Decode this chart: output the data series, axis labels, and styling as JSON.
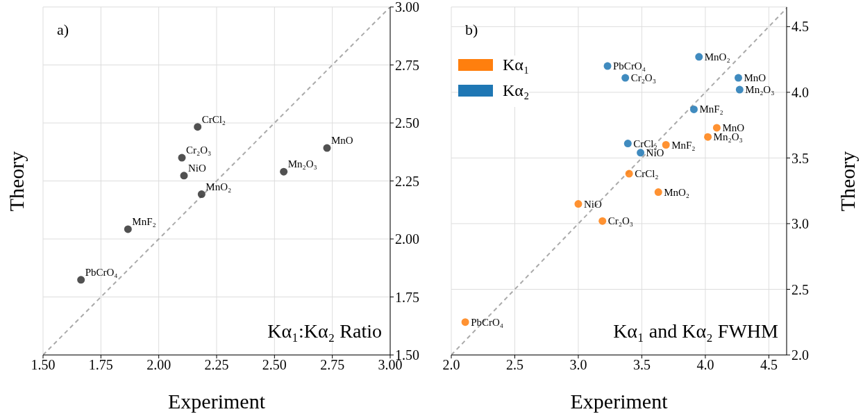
{
  "chart_data": [
    {
      "type": "scatter",
      "xlabel": "Experiment",
      "ylabel": "Theory",
      "xlim": [
        1.5,
        3.0
      ],
      "ylim": [
        1.5,
        3.0
      ],
      "xticks": [
        {
          "value": 1.5,
          "label": "1.50"
        },
        {
          "value": 1.75,
          "label": "1.75"
        },
        {
          "value": 2.0,
          "label": "2.00"
        },
        {
          "value": 2.25,
          "label": "2.25"
        },
        {
          "value": 2.5,
          "label": "2.50"
        },
        {
          "value": 2.75,
          "label": "2.75"
        },
        {
          "value": 3.0,
          "label": "3.00"
        }
      ],
      "yticks": [
        {
          "value": 1.5,
          "label": "1.50"
        },
        {
          "value": 1.75,
          "label": "1.75"
        },
        {
          "value": 2.0,
          "label": "2.00"
        },
        {
          "value": 2.25,
          "label": "2.25"
        },
        {
          "value": 2.5,
          "label": "2.50"
        },
        {
          "value": 2.75,
          "label": "2.75"
        },
        {
          "value": 3.0,
          "label": "3.00"
        }
      ],
      "grid": true,
      "marker": "circle",
      "series": [
        {
          "type": "line",
          "color": "#aaaaaa",
          "line_style": "dashed",
          "marker": "none",
          "x": [
            1.5,
            3.0
          ],
          "values": [
            1.5,
            3.0
          ]
        },
        {
          "type": "scatter",
          "color": "#333333",
          "x": [
            1.664,
            1.867,
            2.185,
            2.109,
            2.1,
            2.168,
            2.54,
            2.727
          ],
          "values": [
            1.824,
            2.042,
            2.193,
            2.273,
            2.35,
            2.483,
            2.29,
            2.392
          ]
        }
      ],
      "annotations": [
        "a)",
        "Kα₁:Kα₂ Ratio",
        {
          "text": "PbCrO₄",
          "x": 1.664,
          "y": 1.824
        },
        {
          "text": "MnF₂",
          "x": 1.867,
          "y": 2.042
        },
        {
          "text": "MnO₂",
          "x": 2.185,
          "y": 2.193
        },
        {
          "text": "NiO",
          "x": 2.109,
          "y": 2.273
        },
        {
          "text": "Cr₂O₃",
          "x": 2.1,
          "y": 2.35
        },
        {
          "text": "CrCl₂",
          "x": 2.168,
          "y": 2.483
        },
        {
          "text": "Mn₂O₃",
          "x": 2.54,
          "y": 2.29
        },
        {
          "text": "MnO",
          "x": 2.727,
          "y": 2.392
        }
      ]
    },
    {
      "type": "scatter",
      "xlabel": "Experiment",
      "ylabel": "Theory",
      "xlim": [
        2.0,
        4.64
      ],
      "ylim": [
        2.0,
        4.65
      ],
      "xticks": [
        {
          "value": 2.0,
          "label": "2.0"
        },
        2.5,
        {
          "value": 3.0,
          "label": "3.0"
        },
        3.5,
        {
          "value": 4.0,
          "label": "4.0"
        },
        4.5
      ],
      "yticks": [
        {
          "value": 2.0,
          "label": "2.0"
        },
        2.5,
        {
          "value": 3.0,
          "label": "3.0"
        },
        3.5,
        {
          "value": 4.0,
          "label": "4.0"
        },
        4.5
      ],
      "grid": true,
      "marker": "circle",
      "legend": "top left",
      "series": [
        {
          "type": "line",
          "color": "#aaaaaa",
          "line_style": "dashed",
          "marker": "none",
          "x": [
            2.0,
            4.64
          ],
          "values": [
            2.0,
            4.64
          ]
        },
        {
          "type": "scatter",
          "name": "Kα₁",
          "color": "#ff7f0e",
          "x": [
            2.11,
            3.0,
            3.19,
            3.4,
            3.63,
            3.69,
            4.02,
            4.09
          ],
          "values": [
            2.25,
            3.15,
            3.02,
            3.38,
            3.24,
            3.6,
            3.66,
            3.73
          ]
        },
        {
          "type": "scatter",
          "name": "Kα₂",
          "color": "#1f77b4",
          "x": [
            3.23,
            3.37,
            3.95,
            4.26,
            4.27,
            3.91,
            3.39,
            3.49
          ],
          "values": [
            4.2,
            4.11,
            4.27,
            4.11,
            4.02,
            3.87,
            3.61,
            3.54
          ]
        }
      ],
      "annotations": [
        "b)",
        "Kα₁ and Kα₂ FWHM",
        {
          "text": "PbCrO₄",
          "x": 2.11,
          "y": 2.25
        },
        {
          "text": "NiO",
          "x": 3.0,
          "y": 3.15
        },
        {
          "text": "Cr₂O₃",
          "x": 3.19,
          "y": 3.02
        },
        {
          "text": "CrCl₂",
          "x": 3.4,
          "y": 3.38
        },
        {
          "text": "MnO₂",
          "x": 3.63,
          "y": 3.24
        },
        {
          "text": "MnF₂",
          "x": 3.69,
          "y": 3.6
        },
        {
          "text": "Mn₂O₃",
          "x": 4.02,
          "y": 3.66
        },
        {
          "text": "MnO",
          "x": 4.09,
          "y": 3.73
        },
        {
          "text": "PbCrO₄",
          "x": 3.23,
          "y": 4.2
        },
        {
          "text": "Cr₂O₃",
          "x": 3.37,
          "y": 4.11
        },
        {
          "text": "MnO₂",
          "x": 3.95,
          "y": 4.27
        },
        {
          "text": "MnO",
          "x": 4.26,
          "y": 4.11
        },
        {
          "text": "Mn₂O₃",
          "x": 4.27,
          "y": 4.02
        },
        {
          "text": "MnF₂",
          "x": 3.91,
          "y": 3.87
        },
        {
          "text": "CrCl₂",
          "x": 3.39,
          "y": 3.61
        },
        {
          "text": "NiO",
          "x": 3.49,
          "y": 3.54
        }
      ]
    }
  ]
}
